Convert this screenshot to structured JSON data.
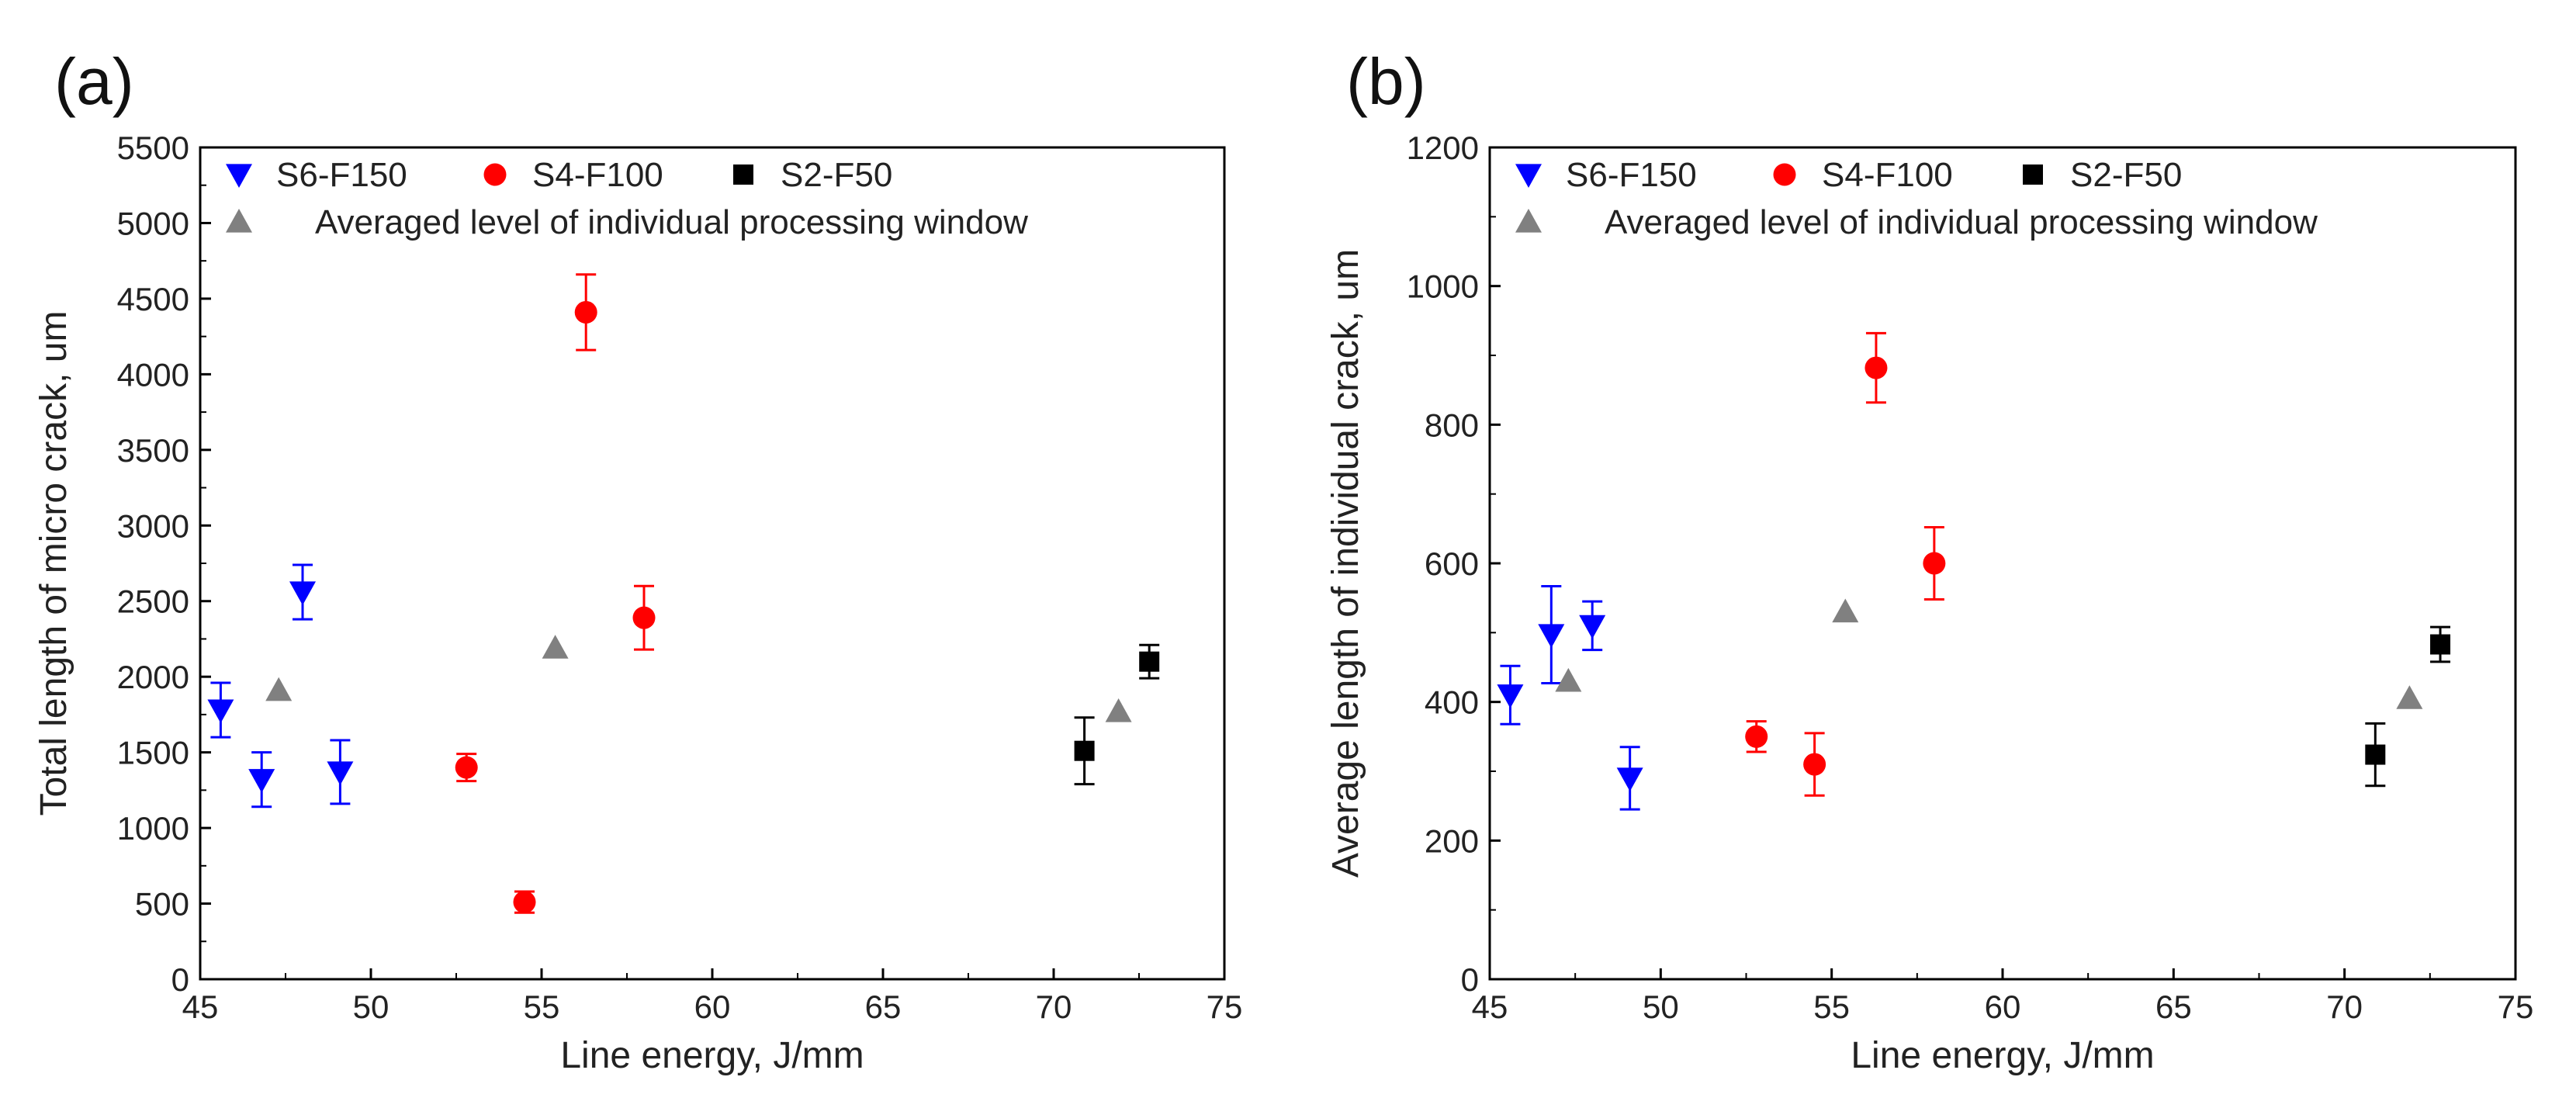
{
  "chart_data": [
    {
      "type": "scatter",
      "panel_label": "(a)",
      "title": "",
      "xlabel": "Line energy, J/mm",
      "ylabel": "Total length of micro crack, um",
      "xlim": [
        45,
        75
      ],
      "ylim": [
        0,
        5500
      ],
      "xticks": [
        45,
        50,
        55,
        60,
        65,
        70,
        75
      ],
      "yticks": [
        0,
        500,
        1000,
        1500,
        2000,
        2500,
        3000,
        3500,
        4000,
        4500,
        5000,
        5500
      ],
      "grid": false,
      "legend": {
        "placement": "top-left"
      },
      "series": [
        {
          "name": "S6-F150",
          "marker": "triangle-down",
          "color": "#0000ff",
          "points": [
            {
              "x": 45.6,
              "y": 1780,
              "err": 180
            },
            {
              "x": 46.8,
              "y": 1320,
              "err": 180
            },
            {
              "x": 48.0,
              "y": 2560,
              "err": 180
            },
            {
              "x": 49.1,
              "y": 1370,
              "err": 210
            }
          ]
        },
        {
          "name": "S4-F100",
          "marker": "circle",
          "color": "#ff0000",
          "points": [
            {
              "x": 52.8,
              "y": 1400,
              "err": 90
            },
            {
              "x": 54.5,
              "y": 510,
              "err": 70
            },
            {
              "x": 56.3,
              "y": 4410,
              "err": 250
            },
            {
              "x": 58.0,
              "y": 2390,
              "err": 210
            }
          ]
        },
        {
          "name": "S2-F50",
          "marker": "square",
          "color": "#000000",
          "points": [
            {
              "x": 70.9,
              "y": 1510,
              "err": 220
            },
            {
              "x": 72.8,
              "y": 2100,
              "err": 110
            }
          ]
        },
        {
          "name": "Averaged level of individual processing window",
          "marker": "triangle-up",
          "color": "#808080",
          "points": [
            {
              "x": 47.3,
              "y": 1910
            },
            {
              "x": 55.4,
              "y": 2190
            },
            {
              "x": 71.9,
              "y": 1770
            }
          ]
        }
      ]
    },
    {
      "type": "scatter",
      "panel_label": "(b)",
      "title": "",
      "xlabel": "Line energy, J/mm",
      "ylabel": "Average length of individual crack, um",
      "xlim": [
        45,
        75
      ],
      "ylim": [
        0,
        1200
      ],
      "xticks": [
        45,
        50,
        55,
        60,
        65,
        70,
        75
      ],
      "yticks": [
        0,
        200,
        400,
        600,
        800,
        1000,
        1200
      ],
      "grid": false,
      "legend": {
        "placement": "top-left"
      },
      "series": [
        {
          "name": "S6-F150",
          "marker": "triangle-down",
          "color": "#0000ff",
          "points": [
            {
              "x": 45.6,
              "y": 410,
              "err": 42
            },
            {
              "x": 46.8,
              "y": 497,
              "err": 70
            },
            {
              "x": 48.0,
              "y": 510,
              "err": 35
            },
            {
              "x": 49.1,
              "y": 290,
              "err": 45
            }
          ]
        },
        {
          "name": "S4-F100",
          "marker": "circle",
          "color": "#ff0000",
          "points": [
            {
              "x": 52.8,
              "y": 350,
              "err": 22
            },
            {
              "x": 54.5,
              "y": 310,
              "err": 45
            },
            {
              "x": 56.3,
              "y": 882,
              "err": 50
            },
            {
              "x": 58.0,
              "y": 600,
              "err": 52
            }
          ]
        },
        {
          "name": "S2-F50",
          "marker": "square",
          "color": "#000000",
          "points": [
            {
              "x": 70.9,
              "y": 324,
              "err": 45
            },
            {
              "x": 72.8,
              "y": 483,
              "err": 25
            }
          ]
        },
        {
          "name": "Averaged level of individual processing window",
          "marker": "triangle-up",
          "color": "#808080",
          "points": [
            {
              "x": 47.3,
              "y": 430
            },
            {
              "x": 55.4,
              "y": 530
            },
            {
              "x": 71.9,
              "y": 405
            }
          ]
        }
      ]
    }
  ]
}
